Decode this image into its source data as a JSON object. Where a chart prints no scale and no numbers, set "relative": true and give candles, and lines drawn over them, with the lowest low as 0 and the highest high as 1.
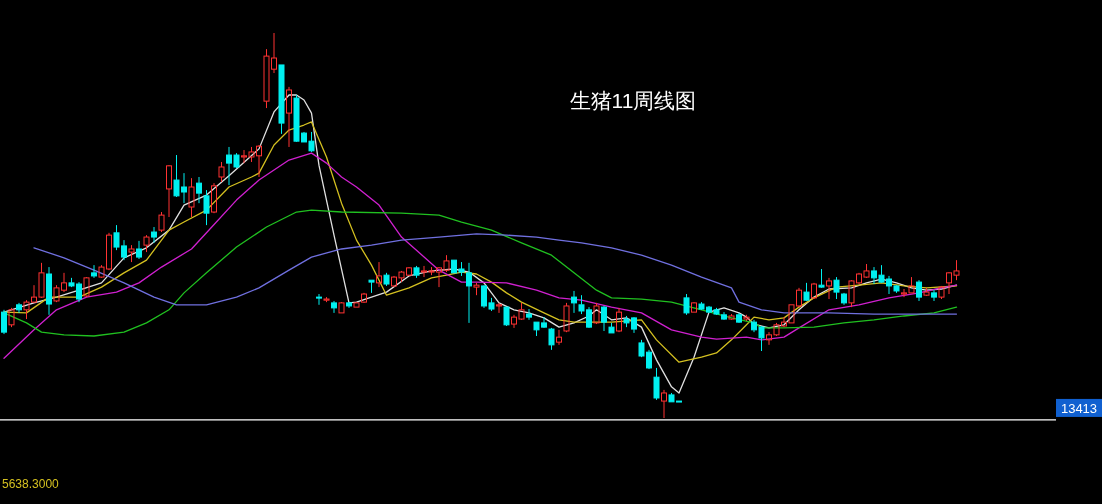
{
  "chart_data": {
    "type": "candlestick",
    "title": "生猪11周线图",
    "relative": true,
    "categories": [
      null,
      null,
      null,
      null,
      null,
      null,
      null,
      null,
      null,
      null,
      null,
      null,
      null,
      null,
      null,
      null,
      null,
      null,
      null,
      null,
      null,
      null,
      null,
      null,
      null,
      null,
      null,
      null,
      null,
      null,
      null,
      null,
      null,
      null,
      null,
      null,
      null,
      null,
      null,
      null,
      null,
      null,
      null,
      null,
      null,
      null,
      null,
      null,
      null,
      null,
      null,
      null,
      null,
      null,
      null,
      null,
      null,
      null,
      null,
      null,
      null,
      null,
      null,
      null,
      null,
      null,
      null,
      null,
      null,
      null,
      null,
      null,
      null,
      null,
      null,
      null,
      null,
      null,
      null,
      null,
      null,
      null,
      null,
      null,
      null,
      null,
      null,
      null,
      null,
      null,
      null,
      null,
      null,
      null,
      null,
      null,
      null,
      null,
      null,
      null,
      null,
      null,
      null,
      null,
      null,
      null,
      null,
      null,
      null,
      null,
      null,
      null,
      null,
      null,
      null,
      null,
      null,
      null,
      null,
      null,
      null,
      null,
      null,
      null,
      null,
      null,
      null,
      null
    ],
    "ohlc": [
      [
        0.275,
        0.281,
        0.218,
        0.223
      ],
      [
        0.242,
        0.286,
        0.236,
        0.281
      ],
      [
        0.294,
        0.299,
        0.273,
        0.281
      ],
      [
        0.281,
        0.306,
        0.257,
        0.301
      ],
      [
        0.301,
        0.345,
        0.299,
        0.314
      ],
      [
        0.314,
        0.403,
        0.312,
        0.377
      ],
      [
        0.374,
        0.392,
        0.268,
        0.296
      ],
      [
        0.304,
        0.345,
        0.301,
        0.338
      ],
      [
        0.332,
        0.377,
        0.327,
        0.351
      ],
      [
        0.351,
        0.364,
        0.34,
        0.343
      ],
      [
        0.348,
        0.353,
        0.301,
        0.309
      ],
      [
        0.317,
        0.366,
        0.314,
        0.364
      ],
      [
        0.377,
        0.397,
        0.364,
        0.369
      ],
      [
        0.366,
        0.397,
        0.364,
        0.392
      ],
      [
        0.387,
        0.481,
        0.384,
        0.475
      ],
      [
        0.481,
        0.501,
        0.436,
        0.444
      ],
      [
        0.447,
        0.462,
        0.41,
        0.418
      ],
      [
        0.431,
        0.449,
        0.405,
        0.439
      ],
      [
        0.439,
        0.46,
        0.413,
        0.418
      ],
      [
        0.449,
        0.475,
        0.431,
        0.47
      ],
      [
        0.483,
        0.496,
        0.455,
        0.47
      ],
      [
        0.488,
        0.535,
        0.483,
        0.527
      ],
      [
        0.595,
        0.657,
        0.522,
        0.655
      ],
      [
        0.618,
        0.683,
        0.574,
        0.577
      ],
      [
        0.6,
        0.636,
        0.558,
        0.587
      ],
      [
        0.548,
        0.623,
        0.522,
        0.6
      ],
      [
        0.61,
        0.626,
        0.558,
        0.584
      ],
      [
        0.577,
        0.592,
        0.501,
        0.532
      ],
      [
        0.535,
        0.61,
        0.532,
        0.603
      ],
      [
        0.626,
        0.665,
        0.613,
        0.652
      ],
      [
        0.683,
        0.704,
        0.605,
        0.662
      ],
      [
        0.683,
        0.688,
        0.649,
        0.652
      ],
      [
        0.678,
        0.696,
        0.662,
        0.681
      ],
      [
        0.678,
        0.704,
        0.665,
        0.691
      ],
      [
        0.681,
        0.709,
        0.626,
        0.706
      ],
      [
        0.823,
        0.958,
        0.805,
        0.94
      ],
      [
        0.906,
        1.0,
        0.896,
        0.935
      ],
      [
        0.917,
        0.917,
        0.738,
        0.766
      ],
      [
        0.792,
        0.86,
        0.704,
        0.852
      ],
      [
        0.831,
        0.839,
        0.717,
        0.719
      ],
      [
        0.74,
        0.743,
        0.717,
        0.717
      ],
      [
        0.719,
        0.743,
        0.691,
        0.694
      ],
      [
        0.314,
        0.322,
        0.294,
        0.312
      ],
      [
        0.306,
        0.314,
        0.301,
        0.309
      ],
      [
        0.299,
        0.304,
        0.273,
        0.286
      ],
      [
        0.273,
        0.301,
        0.273,
        0.299
      ],
      [
        0.299,
        0.301,
        0.286,
        0.291
      ],
      [
        0.288,
        0.301,
        0.288,
        0.299
      ],
      [
        0.301,
        0.325,
        0.299,
        0.322
      ],
      [
        0.358,
        0.358,
        0.325,
        0.353
      ],
      [
        0.351,
        0.405,
        0.34,
        0.369
      ],
      [
        0.371,
        0.377,
        0.343,
        0.348
      ],
      [
        0.343,
        0.369,
        0.34,
        0.366
      ],
      [
        0.364,
        0.382,
        0.353,
        0.379
      ],
      [
        0.371,
        0.392,
        0.369,
        0.39
      ],
      [
        0.39,
        0.395,
        0.364,
        0.371
      ],
      [
        0.379,
        0.395,
        0.366,
        0.382
      ],
      [
        0.379,
        0.392,
        0.371,
        0.382
      ],
      [
        0.379,
        0.392,
        0.34,
        0.39
      ],
      [
        0.384,
        0.423,
        0.379,
        0.408
      ],
      [
        0.41,
        0.41,
        0.377,
        0.377
      ],
      [
        0.387,
        0.405,
        0.369,
        0.379
      ],
      [
        0.377,
        0.403,
        0.247,
        0.343
      ],
      [
        0.34,
        0.351,
        0.319,
        0.345
      ],
      [
        0.343,
        0.345,
        0.286,
        0.291
      ],
      [
        0.299,
        0.312,
        0.278,
        0.283
      ],
      [
        0.291,
        0.299,
        0.273,
        0.294
      ],
      [
        0.288,
        0.288,
        0.239,
        0.242
      ],
      [
        0.244,
        0.268,
        0.234,
        0.262
      ],
      [
        0.257,
        0.299,
        0.255,
        0.281
      ],
      [
        0.27,
        0.283,
        0.255,
        0.262
      ],
      [
        0.249,
        0.249,
        0.213,
        0.229
      ],
      [
        0.247,
        0.262,
        0.234,
        0.236
      ],
      [
        0.231,
        0.234,
        0.177,
        0.19
      ],
      [
        0.197,
        0.229,
        0.19,
        0.21
      ],
      [
        0.226,
        0.299,
        0.223,
        0.291
      ],
      [
        0.314,
        0.33,
        0.273,
        0.299
      ],
      [
        0.294,
        0.319,
        0.27,
        0.278
      ],
      [
        0.281,
        0.288,
        0.234,
        0.236
      ],
      [
        0.247,
        0.299,
        0.244,
        0.291
      ],
      [
        0.288,
        0.291,
        0.226,
        0.249
      ],
      [
        0.236,
        0.247,
        0.221,
        0.221
      ],
      [
        0.226,
        0.286,
        0.223,
        0.275
      ],
      [
        0.257,
        0.265,
        0.236,
        0.247
      ],
      [
        0.26,
        0.262,
        0.221,
        0.231
      ],
      [
        0.195,
        0.203,
        0.158,
        0.161
      ],
      [
        0.171,
        0.177,
        0.127,
        0.13
      ],
      [
        0.106,
        0.13,
        0.047,
        0.052
      ],
      [
        0.044,
        0.073,
        0,
        0.065
      ],
      [
        0.06,
        0.065,
        0.042,
        0.042
      ],
      [
        0.044,
        0.044,
        0.042,
        0.042
      ],
      [
        0.312,
        0.322,
        0.268,
        0.273
      ],
      [
        0.275,
        0.301,
        0.275,
        0.299
      ],
      [
        0.296,
        0.301,
        0.281,
        0.283
      ],
      [
        0.288,
        0.291,
        0.273,
        0.275
      ],
      [
        0.281,
        0.286,
        0.268,
        0.27
      ],
      [
        0.268,
        0.275,
        0.255,
        0.257
      ],
      [
        0.257,
        0.27,
        0.255,
        0.265
      ],
      [
        0.268,
        0.273,
        0.247,
        0.249
      ],
      [
        0.257,
        0.268,
        0.252,
        0.262
      ],
      [
        0.249,
        0.255,
        0.223,
        0.229
      ],
      [
        0.236,
        0.239,
        0.174,
        0.208
      ],
      [
        0.203,
        0.223,
        0.19,
        0.216
      ],
      [
        0.216,
        0.247,
        0.213,
        0.242
      ],
      [
        0.239,
        0.262,
        0.236,
        0.249
      ],
      [
        0.247,
        0.294,
        0.247,
        0.294
      ],
      [
        0.291,
        0.338,
        0.288,
        0.332
      ],
      [
        0.327,
        0.351,
        0.304,
        0.306
      ],
      [
        0.312,
        0.351,
        0.309,
        0.348
      ],
      [
        0.345,
        0.387,
        0.338,
        0.34
      ],
      [
        0.343,
        0.364,
        0.309,
        0.356
      ],
      [
        0.358,
        0.366,
        0.309,
        0.327
      ],
      [
        0.322,
        0.325,
        0.294,
        0.299
      ],
      [
        0.299,
        0.358,
        0.288,
        0.356
      ],
      [
        0.351,
        0.377,
        0.348,
        0.374
      ],
      [
        0.366,
        0.4,
        0.364,
        0.382
      ],
      [
        0.382,
        0.392,
        0.348,
        0.364
      ],
      [
        0.371,
        0.397,
        0.351,
        0.353
      ],
      [
        0.361,
        0.369,
        0.322,
        0.343
      ],
      [
        0.343,
        0.345,
        0.325,
        0.33
      ],
      [
        0.322,
        0.335,
        0.314,
        0.325
      ],
      [
        0.325,
        0.366,
        0.325,
        0.343
      ],
      [
        0.353,
        0.358,
        0.304,
        0.314
      ],
      [
        0.319,
        0.338,
        0.317,
        0.327
      ],
      [
        0.325,
        0.332,
        0.304,
        0.314
      ],
      [
        0.314,
        0.343,
        0.309,
        0.34
      ],
      [
        0.351,
        0.379,
        0.322,
        0.377
      ],
      [
        0.371,
        0.41,
        0.358,
        0.382
      ]
    ],
    "series": [
      {
        "type": "line",
        "color": "#e0e0e0",
        "values": [
          0.275,
          null,
          null,
          null,
          0.299,
          null,
          null,
          0.314,
          null,
          null,
          0.332,
          null,
          null,
          0.351,
          null,
          null,
          0.416,
          null,
          null,
          0.442,
          null,
          null,
          0.488,
          null,
          0.553,
          null,
          null,
          0.579,
          null,
          null,
          0.629,
          null,
          null,
          null,
          0.699,
          null,
          0.795,
          null,
          0.839,
          0.839,
          0.826,
          0.792,
          0.656,
          null,
          0.475,
          null,
          0.299,
          0.301,
          null,
          null,
          null,
          0.327,
          null,
          null,
          0.369,
          null,
          null,
          0.382,
          null,
          null,
          0.387,
          null,
          0.379,
          null,
          0.351,
          null,
          0.299,
          null,
          0.281,
          null,
          0.273,
          null,
          0.26,
          null,
          0.236,
          null,
          0.247,
          null,
          0.265,
          0.281,
          null,
          0.255,
          null,
          0.26,
          null,
          0.236,
          null,
          0.151,
          null,
          0.081,
          0.065,
          null,
          0.158,
          null,
          0.275,
          null,
          0.286,
          null,
          0.273,
          0.262,
          0.244,
          null,
          0.234,
          null,
          0.242,
          null,
          0.281,
          null,
          0.314,
          null,
          0.335,
          null,
          null,
          0.338,
          null,
          0.351,
          null,
          0.361,
          null,
          0.351,
          null,
          0.338,
          null,
          0.332,
          null,
          0.335,
          null,
          0.345
        ]
      },
      {
        "type": "line",
        "color": "#d4c020",
        "values": [
          0.275,
          null,
          null,
          0.273,
          null,
          null,
          0.314,
          null,
          null,
          null,
          0.314,
          null,
          null,
          0.34,
          null,
          null,
          0.377,
          null,
          null,
          0.41,
          null,
          null,
          0.488,
          null,
          0.509,
          null,
          null,
          0.54,
          null,
          null,
          0.6,
          null,
          null,
          0.626,
          0.636,
          null,
          0.709,
          null,
          0.748,
          null,
          0.761,
          0.769,
          null,
          0.678,
          null,
          0.558,
          null,
          0.462,
          null,
          0.397,
          null,
          0.319,
          null,
          null,
          0.338,
          null,
          null,
          0.364,
          null,
          0.371,
          null,
          0.379,
          null,
          0.374,
          null,
          0.353,
          null,
          0.325,
          null,
          0.301,
          null,
          null,
          0.273,
          null,
          0.255,
          null,
          0.249,
          null,
          null,
          null,
          null,
          0.249,
          null,
          null,
          null,
          0.255,
          null,
          0.203,
          null,
          null,
          0.145,
          null,
          null,
          0.158,
          null,
          0.169,
          null,
          0.203,
          null,
          0.242,
          0.262,
          null,
          0.255,
          null,
          0.26,
          null,
          0.288,
          null,
          0.312,
          null,
          null,
          0.34,
          null,
          null,
          0.345,
          null,
          null,
          0.351,
          null,
          null,
          0.343,
          null,
          null,
          0.338,
          null,
          null,
          null,
          0.343
        ]
      },
      {
        "type": "line",
        "color": "#d020d0",
        "values": [
          0.155,
          null,
          null,
          null,
          0.229,
          null,
          null,
          0.281,
          null,
          null,
          null,
          0.314,
          null,
          null,
          null,
          0.327,
          null,
          null,
          0.351,
          null,
          null,
          0.392,
          null,
          null,
          null,
          0.439,
          null,
          0.481,
          null,
          null,
          null,
          0.566,
          null,
          null,
          0.618,
          null,
          null,
          null,
          0.67,
          null,
          null,
          0.688,
          null,
          0.662,
          null,
          0.626,
          null,
          0.6,
          null,
          null,
          0.553,
          null,
          null,
          0.47,
          null,
          null,
          null,
          null,
          0.384,
          null,
          null,
          0.353,
          null,
          0.353,
          null,
          null,
          null,
          0.351,
          null,
          null,
          null,
          0.332,
          null,
          null,
          0.312,
          null,
          null,
          0.306,
          null,
          null,
          null,
          0.288,
          null,
          null,
          null,
          0.273,
          null,
          null,
          null,
          0.229,
          null,
          null,
          null,
          0.21,
          null,
          0.205,
          null,
          null,
          null,
          0.21,
          null,
          0.203,
          null,
          null,
          0.21,
          null,
          0.234,
          null,
          null,
          null,
          0.281,
          null,
          null,
          null,
          0.294,
          null,
          null,
          null,
          0.312,
          null,
          null,
          null,
          0.325,
          null,
          null,
          0.338,
          null,
          0.345
        ]
      },
      {
        "type": "line",
        "color": "#20c020",
        "values": [
          0.273,
          null,
          null,
          0.247,
          null,
          0.223,
          null,
          null,
          0.216,
          null,
          null,
          null,
          0.213,
          null,
          null,
          null,
          0.223,
          null,
          null,
          0.247,
          null,
          null,
          0.281,
          null,
          0.325,
          null,
          null,
          0.377,
          null,
          null,
          null,
          0.444,
          null,
          null,
          null,
          0.496,
          null,
          null,
          null,
          0.535,
          null,
          0.54,
          null,
          null,
          null,
          0.535,
          null,
          null,
          null,
          null,
          null,
          null,
          null,
          0.532,
          null,
          null,
          null,
          null,
          0.527,
          null,
          null,
          0.509,
          null,
          null,
          null,
          0.488,
          null,
          null,
          null,
          0.455,
          null,
          null,
          null,
          0.423,
          null,
          null,
          0.377,
          null,
          null,
          0.332,
          null,
          0.312,
          null,
          null,
          null,
          0.309,
          null,
          null,
          null,
          0.301,
          null,
          null,
          null,
          0.281,
          null,
          null,
          null,
          0.26,
          null,
          null,
          0.247,
          0.234,
          null,
          null,
          0.234,
          null,
          null,
          null,
          0.236,
          null,
          null,
          null,
          0.247,
          null,
          null,
          null,
          0.255,
          null,
          null,
          null,
          0.265,
          null,
          null,
          null,
          0.273,
          null,
          null,
          0.288
        ]
      },
      {
        "type": "line",
        "color": "#7070e0",
        "values": [
          null,
          null,
          null,
          null,
          0.442,
          null,
          null,
          null,
          0.416,
          null,
          null,
          null,
          0.384,
          null,
          null,
          null,
          0.351,
          null,
          null,
          null,
          0.314,
          null,
          null,
          0.294,
          null,
          null,
          null,
          0.294,
          null,
          null,
          null,
          0.314,
          null,
          null,
          0.338,
          null,
          null,
          null,
          0.384,
          null,
          null,
          0.418,
          null,
          null,
          null,
          0.439,
          null,
          null,
          null,
          0.449,
          null,
          null,
          null,
          0.462,
          null,
          null,
          null,
          null,
          0.47,
          null,
          null,
          null,
          null,
          0.478,
          null,
          null,
          null,
          0.475,
          null,
          null,
          null,
          0.47,
          null,
          null,
          0.462,
          null,
          null,
          0.455,
          null,
          null,
          null,
          0.442,
          null,
          null,
          null,
          0.423,
          null,
          null,
          null,
          0.397,
          null,
          null,
          null,
          0.366,
          null,
          null,
          null,
          0.338,
          0.301,
          null,
          null,
          0.281,
          null,
          null,
          0.273,
          null,
          null,
          null,
          null,
          null,
          0.273,
          null,
          null,
          null,
          null,
          null,
          0.27,
          null,
          null,
          null,
          null,
          null,
          0.27,
          null,
          null,
          null,
          null,
          0.27
        ]
      }
    ],
    "ref_lines": [
      {
        "axis": "y",
        "value": -0.005,
        "color": "#ffffff"
      }
    ],
    "annotations": [
      "13413",
      "5638.3000"
    ]
  }
}
